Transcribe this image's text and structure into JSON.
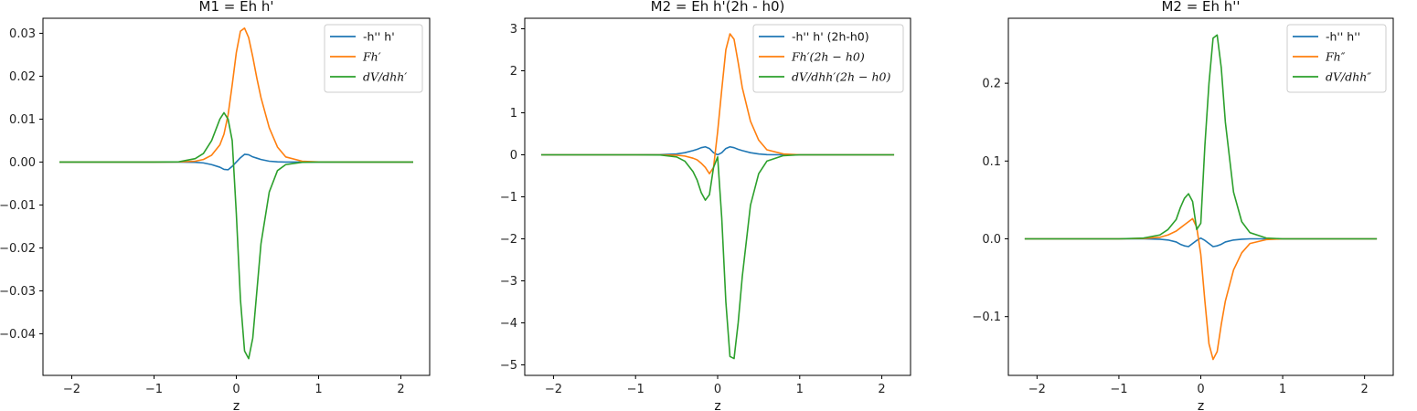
{
  "chart_data": [
    {
      "type": "line",
      "title": "M1 = Eh h'",
      "xlabel": "z",
      "ylabel": "",
      "xlim": [
        -2.35,
        2.35
      ],
      "ylim": [
        -0.0497,
        0.0335
      ],
      "xticks": [
        -2,
        -1,
        0,
        1,
        2
      ],
      "xtick_labels": [
        "−2",
        "−1",
        "0",
        "1",
        "2"
      ],
      "yticks": [
        -0.04,
        -0.03,
        -0.02,
        -0.01,
        0.0,
        0.01,
        0.02,
        0.03
      ],
      "ytick_labels": [
        "−0.04",
        "−0.03",
        "−0.02",
        "−0.01",
        "0.00",
        "0.01",
        "0.02",
        "0.03"
      ],
      "grid": false,
      "legend": "top-right",
      "x": [
        -2.15,
        -1.5,
        -1.0,
        -0.7,
        -0.5,
        -0.4,
        -0.3,
        -0.2,
        -0.15,
        -0.1,
        -0.05,
        0.0,
        0.05,
        0.1,
        0.15,
        0.2,
        0.25,
        0.3,
        0.4,
        0.5,
        0.6,
        0.8,
        1.0,
        1.5,
        2.15
      ],
      "series": [
        {
          "name": "-h'' h'",
          "math": false,
          "color": "#1f77b4",
          "values": [
            0,
            0,
            0,
            0,
            -5e-05,
            -0.0002,
            -0.0006,
            -0.0012,
            -0.0017,
            -0.0018,
            -0.001,
            0.0,
            0.001,
            0.0018,
            0.0017,
            0.0012,
            0.0009,
            0.0006,
            0.0002,
            5e-05,
            1e-05,
            0,
            0,
            0,
            0
          ]
        },
        {
          "name": "Fh′",
          "math": true,
          "color": "#ff7f0e",
          "values": [
            0,
            0,
            0,
            2e-05,
            0.0002,
            0.0006,
            0.0016,
            0.004,
            0.0065,
            0.011,
            0.018,
            0.0255,
            0.0305,
            0.0312,
            0.029,
            0.0245,
            0.0195,
            0.015,
            0.008,
            0.0035,
            0.0012,
            0.0002,
            3e-05,
            0,
            0
          ]
        },
        {
          "name": "dV/dhh′",
          "math": true,
          "color": "#2ca02c",
          "values": [
            0,
            0,
            0,
            5e-05,
            0.0008,
            0.002,
            0.005,
            0.01,
            0.0115,
            0.01,
            0.005,
            -0.012,
            -0.032,
            -0.044,
            -0.0458,
            -0.041,
            -0.03,
            -0.019,
            -0.007,
            -0.002,
            -0.0006,
            -5e-05,
            0,
            0,
            0
          ]
        }
      ]
    },
    {
      "type": "line",
      "title": "M2 = Eh h'(2h - h0)",
      "xlabel": "z",
      "ylabel": "",
      "xlim": [
        -2.35,
        2.35
      ],
      "ylim": [
        -5.25,
        3.25
      ],
      "xticks": [
        -2,
        -1,
        0,
        1,
        2
      ],
      "xtick_labels": [
        "−2",
        "−1",
        "0",
        "1",
        "2"
      ],
      "yticks": [
        -5,
        -4,
        -3,
        -2,
        -1,
        0,
        1,
        2,
        3
      ],
      "ytick_labels": [
        "−5",
        "−4",
        "−3",
        "−2",
        "−1",
        "0",
        "1",
        "2",
        "3"
      ],
      "grid": false,
      "legend": "top-right",
      "x": [
        -2.15,
        -1.5,
        -1.0,
        -0.7,
        -0.5,
        -0.4,
        -0.3,
        -0.25,
        -0.2,
        -0.15,
        -0.1,
        -0.05,
        0.0,
        0.05,
        0.1,
        0.15,
        0.2,
        0.25,
        0.3,
        0.4,
        0.5,
        0.6,
        0.8,
        1.0,
        1.5,
        2.15
      ],
      "series": [
        {
          "name": "-h'' h' (2h-h0)",
          "math": false,
          "color": "#1f77b4",
          "values": [
            0,
            0,
            0,
            0.005,
            0.02,
            0.05,
            0.1,
            0.13,
            0.17,
            0.19,
            0.15,
            0.05,
            0.0,
            0.05,
            0.15,
            0.19,
            0.17,
            0.13,
            0.1,
            0.05,
            0.02,
            0.005,
            0,
            0,
            0,
            0
          ]
        },
        {
          "name": "Fh′(2h − h0)",
          "math": true,
          "color": "#ff7f0e",
          "values": [
            0,
            0,
            0,
            0,
            -0.01,
            -0.03,
            -0.08,
            -0.12,
            -0.2,
            -0.3,
            -0.45,
            -0.3,
            0.55,
            1.55,
            2.5,
            2.88,
            2.75,
            2.2,
            1.6,
            0.8,
            0.35,
            0.12,
            0.02,
            0,
            0,
            0
          ]
        },
        {
          "name": "dV/dhh′(2h − h0)",
          "math": true,
          "color": "#2ca02c",
          "values": [
            0,
            0,
            0,
            -0.005,
            -0.05,
            -0.15,
            -0.4,
            -0.6,
            -0.9,
            -1.08,
            -0.95,
            -0.3,
            -0.05,
            -1.5,
            -3.5,
            -4.8,
            -4.85,
            -4.0,
            -2.9,
            -1.2,
            -0.45,
            -0.15,
            -0.02,
            0,
            0,
            0
          ]
        }
      ]
    },
    {
      "type": "line",
      "title": "M2 = Eh h''",
      "xlabel": "z",
      "ylabel": "",
      "xlim": [
        -2.35,
        2.35
      ],
      "ylim": [
        -0.1755,
        0.2835
      ],
      "xticks": [
        -2,
        -1,
        0,
        1,
        2
      ],
      "xtick_labels": [
        "−2",
        "−1",
        "0",
        "1",
        "2"
      ],
      "yticks": [
        -0.1,
        0.0,
        0.1,
        0.2
      ],
      "ytick_labels": [
        "−0.1",
        "0.0",
        "0.1",
        "0.2"
      ],
      "grid": false,
      "legend": "top-right",
      "x": [
        -2.15,
        -1.5,
        -1.0,
        -0.7,
        -0.5,
        -0.4,
        -0.3,
        -0.25,
        -0.2,
        -0.15,
        -0.1,
        -0.05,
        0.0,
        0.05,
        0.1,
        0.15,
        0.2,
        0.25,
        0.3,
        0.4,
        0.5,
        0.6,
        0.8,
        1.0,
        1.5,
        2.15
      ],
      "series": [
        {
          "name": "-h'' h''",
          "math": false,
          "color": "#1f77b4",
          "values": [
            0,
            0,
            0,
            0,
            -0.0005,
            -0.0015,
            -0.004,
            -0.007,
            -0.009,
            -0.01,
            -0.006,
            -0.002,
            0.001,
            -0.002,
            -0.006,
            -0.01,
            -0.009,
            -0.007,
            -0.004,
            -0.0015,
            -0.0005,
            0,
            0,
            0,
            0,
            0
          ]
        },
        {
          "name": "Fh″",
          "math": true,
          "color": "#ff7f0e",
          "values": [
            0,
            0,
            0,
            0.0005,
            0.002,
            0.005,
            0.01,
            0.014,
            0.018,
            0.022,
            0.026,
            0.015,
            -0.02,
            -0.08,
            -0.135,
            -0.155,
            -0.145,
            -0.11,
            -0.08,
            -0.04,
            -0.018,
            -0.006,
            -0.001,
            0,
            0,
            0
          ]
        },
        {
          "name": "dV/dhh″",
          "math": true,
          "color": "#2ca02c",
          "values": [
            0,
            0,
            0,
            0.001,
            0.005,
            0.012,
            0.025,
            0.04,
            0.052,
            0.058,
            0.048,
            0.012,
            0.02,
            0.12,
            0.2,
            0.258,
            0.262,
            0.22,
            0.15,
            0.06,
            0.022,
            0.008,
            0.001,
            0,
            0,
            0
          ]
        }
      ]
    }
  ]
}
